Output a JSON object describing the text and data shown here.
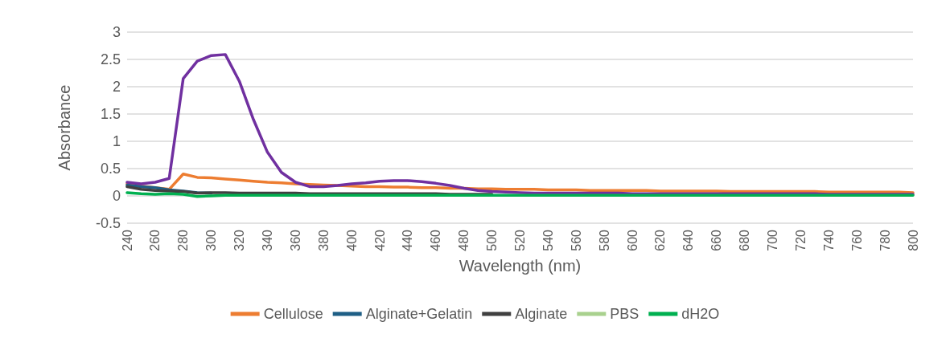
{
  "chart_data": {
    "type": "line",
    "xlabel": "Wavelength (nm)",
    "ylabel": "Absorbance",
    "x": [
      240,
      250,
      260,
      270,
      280,
      290,
      300,
      310,
      320,
      330,
      340,
      350,
      360,
      370,
      380,
      390,
      400,
      410,
      420,
      430,
      440,
      450,
      460,
      470,
      480,
      490,
      500,
      510,
      520,
      530,
      540,
      550,
      560,
      570,
      580,
      590,
      600,
      610,
      620,
      630,
      640,
      650,
      660,
      670,
      680,
      690,
      700,
      710,
      720,
      730,
      740,
      750,
      760,
      770,
      780,
      790,
      800
    ],
    "series": [
      {
        "name": "Cellulose",
        "color": "#ed7d31",
        "values": [
          0.22,
          0.18,
          0.15,
          0.12,
          0.4,
          0.34,
          0.33,
          0.31,
          0.29,
          0.27,
          0.25,
          0.24,
          0.22,
          0.21,
          0.2,
          0.19,
          0.18,
          0.17,
          0.17,
          0.16,
          0.16,
          0.15,
          0.15,
          0.14,
          0.14,
          0.13,
          0.13,
          0.12,
          0.12,
          0.12,
          0.11,
          0.11,
          0.11,
          0.1,
          0.1,
          0.1,
          0.1,
          0.1,
          0.09,
          0.09,
          0.09,
          0.09,
          0.09,
          0.08,
          0.08,
          0.08,
          0.08,
          0.08,
          0.08,
          0.08,
          0.07,
          0.07,
          0.07,
          0.07,
          0.07,
          0.07,
          0.06
        ]
      },
      {
        "name": "Alginate+Gelatin",
        "color": "#1f5f86",
        "values": [
          0.2,
          0.17,
          0.15,
          0.11,
          0.09,
          0.06,
          0.05,
          null,
          null,
          null,
          null,
          null,
          null,
          null,
          null,
          null,
          null,
          null,
          null,
          null,
          null,
          null,
          null,
          null,
          null,
          null,
          null,
          null,
          null,
          null,
          null,
          null,
          null,
          null,
          null,
          null,
          null,
          null,
          null,
          null,
          null,
          null,
          null,
          null,
          null,
          null,
          null,
          null,
          null,
          null,
          null,
          null,
          null,
          null,
          null,
          null,
          null
        ]
      },
      {
        "name": "Alginate",
        "color": "#404040",
        "values": [
          0.17,
          0.12,
          0.1,
          0.09,
          0.08,
          0.05,
          0.06,
          0.06,
          0.05,
          0.05,
          0.05,
          0.05,
          0.05,
          0.04,
          0.04,
          0.04,
          0.04,
          0.04,
          0.04,
          0.04,
          0.04,
          0.04,
          0.04,
          0.03,
          0.03,
          0.03,
          0.03,
          null,
          null,
          null,
          null,
          null,
          null,
          null,
          null,
          null,
          null,
          null,
          null,
          null,
          null,
          null,
          null,
          null,
          null,
          null,
          null,
          null,
          null,
          null,
          null,
          null,
          null,
          null,
          null,
          null,
          null
        ]
      },
      {
        "color": "#7030a0",
        "values": [
          0.25,
          0.22,
          0.25,
          0.32,
          2.15,
          2.47,
          2.57,
          2.59,
          2.1,
          1.4,
          0.8,
          0.43,
          0.25,
          0.17,
          0.17,
          0.19,
          0.22,
          0.24,
          0.27,
          0.28,
          0.28,
          0.26,
          0.23,
          0.19,
          0.14,
          0.1,
          0.08,
          0.07,
          0.06,
          0.05,
          0.05,
          0.05,
          0.05,
          0.05,
          0.05,
          0.05,
          0.04,
          0.04,
          0.04,
          0.04,
          0.04,
          0.04,
          0.04,
          0.04,
          0.04,
          0.04,
          0.04,
          0.04,
          0.04,
          0.04,
          0.03,
          0.03,
          0.03,
          0.03,
          0.03,
          0.03,
          0.03
        ]
      },
      {
        "name": "PBS",
        "color": "#a9d18e",
        "values": [
          null,
          null,
          null,
          null,
          null,
          null,
          null,
          null,
          null,
          null,
          null,
          null,
          null,
          null,
          null,
          null,
          null,
          null,
          null,
          null,
          null,
          null,
          null,
          null,
          null,
          null,
          null,
          null,
          null,
          null,
          null,
          null,
          null,
          null,
          null,
          null,
          null,
          null,
          null,
          null,
          null,
          null,
          null,
          null,
          null,
          null,
          null,
          null,
          null,
          null,
          null,
          null,
          null,
          null,
          null,
          null,
          null
        ]
      },
      {
        "name": "dH2O",
        "color": "#00b050",
        "values": [
          0.06,
          0.04,
          0.03,
          0.04,
          0.03,
          -0.01,
          0.0,
          0.01,
          0.01,
          0.01,
          0.01,
          0.01,
          0.01,
          0.01,
          0.01,
          0.01,
          0.01,
          0.01,
          0.01,
          0.01,
          0.01,
          0.01,
          0.01,
          0.01,
          0.01,
          0.01,
          0.01,
          0.01,
          0.01,
          0.01,
          0.01,
          0.01,
          0.01,
          0.01,
          0.01,
          0.01,
          0.01,
          0.01,
          0.01,
          0.01,
          0.01,
          0.01,
          0.01,
          0.01,
          0.01,
          0.01,
          0.01,
          0.01,
          0.01,
          0.01,
          0.01,
          0.01,
          0.01,
          0.01,
          0.01,
          0.01,
          0.01
        ]
      }
    ],
    "xlim": [
      240,
      800
    ],
    "xticks": [
      240,
      260,
      280,
      300,
      320,
      340,
      360,
      380,
      400,
      420,
      440,
      460,
      480,
      500,
      520,
      540,
      560,
      580,
      600,
      620,
      640,
      660,
      680,
      700,
      720,
      740,
      760,
      780,
      800
    ],
    "ylim": [
      -0.5,
      3
    ],
    "yticks": [
      -0.5,
      0,
      0.5,
      1,
      1.5,
      2,
      2.5,
      3
    ],
    "grid": "y",
    "legend": "bottom",
    "marker": "none",
    "line_style": "solid"
  }
}
